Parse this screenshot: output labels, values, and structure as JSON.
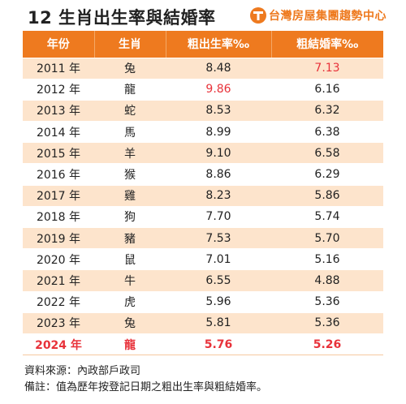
{
  "header": {
    "title": "12 生肖出生率與結婚率",
    "brand_name": "台灣房屋集團趨勢中心",
    "brand_color": "#ee7a1f"
  },
  "table": {
    "columns": [
      "年份",
      "生肖",
      "粗出生率‰",
      "粗結婚率‰"
    ],
    "rows": [
      {
        "year": "2011 年",
        "zodiac": "兔",
        "birth": "8.48",
        "marriage": "7.13",
        "red_cell": "marriage"
      },
      {
        "year": "2012 年",
        "zodiac": "龍",
        "birth": "9.86",
        "marriage": "6.16",
        "red_cell": "birth"
      },
      {
        "year": "2013 年",
        "zodiac": "蛇",
        "birth": "8.53",
        "marriage": "6.32"
      },
      {
        "year": "2014 年",
        "zodiac": "馬",
        "birth": "8.99",
        "marriage": "6.38"
      },
      {
        "year": "2015 年",
        "zodiac": "羊",
        "birth": "9.10",
        "marriage": "6.58"
      },
      {
        "year": "2016 年",
        "zodiac": "猴",
        "birth": "8.86",
        "marriage": "6.29"
      },
      {
        "year": "2017 年",
        "zodiac": "雞",
        "birth": "8.23",
        "marriage": "5.86"
      },
      {
        "year": "2018 年",
        "zodiac": "狗",
        "birth": "7.70",
        "marriage": "5.74"
      },
      {
        "year": "2019 年",
        "zodiac": "豬",
        "birth": "7.53",
        "marriage": "5.70"
      },
      {
        "year": "2020 年",
        "zodiac": "鼠",
        "birth": "7.01",
        "marriage": "5.16"
      },
      {
        "year": "2021 年",
        "zodiac": "牛",
        "birth": "6.55",
        "marriage": "4.88"
      },
      {
        "year": "2022 年",
        "zodiac": "虎",
        "birth": "5.96",
        "marriage": "5.36"
      },
      {
        "year": "2023 年",
        "zodiac": "兔",
        "birth": "5.81",
        "marriage": "5.36"
      },
      {
        "year": "2024 年",
        "zodiac": "龍",
        "birth": "5.76",
        "marriage": "5.26",
        "highlight": true
      }
    ],
    "header_bg": "#ee7a1f",
    "stripe_bg": "#fde4cc",
    "highlight_color": "#e8323a"
  },
  "notes": {
    "source": "資料來源：內政部戶政司",
    "remark": "備註：值為歷年按登記日期之粗出生率與粗結婚率。"
  }
}
